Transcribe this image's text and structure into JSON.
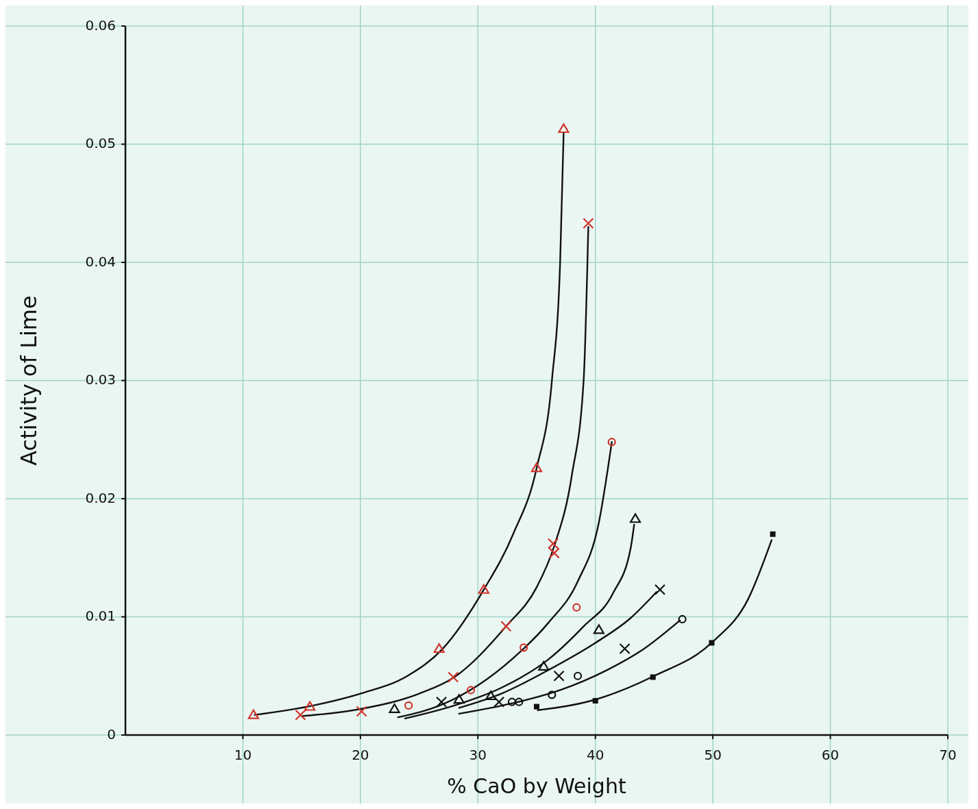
{
  "chart_data": {
    "type": "scatter",
    "xlabel": "% CaO by Weight",
    "ylabel": "Activity of Lime",
    "xlim": [
      0,
      70
    ],
    "ylim": [
      0,
      0.06
    ],
    "xticks": [
      10,
      20,
      30,
      40,
      50,
      60,
      70
    ],
    "yticks": [
      0,
      0.01,
      0.02,
      0.03,
      0.04,
      0.05,
      0.06
    ],
    "grid": true,
    "series": [
      {
        "type": "line",
        "color": "#111111",
        "marker": "none",
        "line_style": "solid",
        "x": [
          11,
          16,
          20,
          24,
          27,
          30.5,
          33,
          35,
          36.3,
          37,
          37.3
        ],
        "values": [
          0.0017,
          0.0025,
          0.0035,
          0.005,
          0.0073,
          0.0123,
          0.017,
          0.0226,
          0.03,
          0.04,
          0.051
        ]
      },
      {
        "type": "line",
        "color": "#111111",
        "marker": "none",
        "line_style": "solid",
        "x": [
          15,
          20,
          25,
          28,
          32.4,
          35,
          36.5,
          38,
          39,
          39.4
        ],
        "values": [
          0.0016,
          0.0022,
          0.0035,
          0.0049,
          0.0092,
          0.0125,
          0.016,
          0.022,
          0.03,
          0.043
        ]
      },
      {
        "type": "line",
        "color": "#111111",
        "marker": "none",
        "line_style": "solid",
        "x": [
          23.2,
          27,
          30,
          33,
          36,
          38.5,
          40.3,
          41.4
        ],
        "values": [
          0.0015,
          0.0026,
          0.0042,
          0.0065,
          0.0095,
          0.013,
          0.018,
          0.0248
        ]
      },
      {
        "type": "line",
        "color": "#111111",
        "marker": "none",
        "line_style": "solid",
        "x": [
          23.8,
          28,
          32,
          36,
          39,
          41.5,
          43,
          43.3
        ],
        "values": [
          0.0014,
          0.0025,
          0.004,
          0.0064,
          0.0092,
          0.012,
          0.0158,
          0.0178
        ]
      },
      {
        "type": "line",
        "color": "#111111",
        "marker": "none",
        "line_style": "solid",
        "x": [
          28.4,
          32,
          36,
          40,
          43,
          45.2
        ],
        "values": [
          0.0023,
          0.0035,
          0.0055,
          0.0078,
          0.0099,
          0.0121
        ]
      },
      {
        "type": "line",
        "color": "#111111",
        "marker": "none",
        "line_style": "solid",
        "x": [
          28.4,
          33,
          37,
          41,
          44,
          47.2
        ],
        "values": [
          0.0018,
          0.0027,
          0.0038,
          0.0055,
          0.0072,
          0.0097
        ]
      },
      {
        "type": "line",
        "color": "#111111",
        "marker": "none",
        "line_style": "solid",
        "x": [
          35.1,
          40,
          45,
          50,
          53,
          55
        ],
        "values": [
          0.0021,
          0.003,
          0.005,
          0.0079,
          0.0115,
          0.0165
        ]
      },
      {
        "type": "scatter",
        "color": "#d0342c",
        "marker": "triangle",
        "x": [
          10.9,
          15.7,
          26.7,
          30.5,
          35.0,
          37.3
        ],
        "values": [
          0.0017,
          0.0024,
          0.0073,
          0.0123,
          0.0226,
          0.0513
        ]
      },
      {
        "type": "scatter",
        "color": "#d0342c",
        "marker": "cross",
        "x": [
          14.9,
          20.1,
          27.9,
          32.4,
          36.4,
          36.5,
          39.4
        ],
        "values": [
          0.0017,
          0.002,
          0.0049,
          0.0092,
          0.0162,
          0.0154,
          0.0433
        ]
      },
      {
        "type": "scatter",
        "color": "#d0342c",
        "marker": "circle",
        "x": [
          24.1,
          29.4,
          33.9,
          38.4,
          41.4
        ],
        "values": [
          0.0025,
          0.0038,
          0.0074,
          0.0108,
          0.0248
        ]
      },
      {
        "type": "scatter",
        "color": "#111111",
        "marker": "triangle",
        "x": [
          22.9,
          28.4,
          31.1,
          35.6,
          40.3,
          43.4
        ],
        "values": [
          0.0022,
          0.003,
          0.0033,
          0.0058,
          0.0089,
          0.0183
        ]
      },
      {
        "type": "scatter",
        "color": "#111111",
        "marker": "cross",
        "x": [
          26.9,
          31.8,
          36.9,
          42.5,
          45.5
        ],
        "values": [
          0.0028,
          0.0028,
          0.005,
          0.0073,
          0.0123
        ]
      },
      {
        "type": "scatter",
        "color": "#111111",
        "marker": "circle",
        "x": [
          32.9,
          33.5,
          36.3,
          38.5,
          47.4
        ],
        "values": [
          0.0028,
          0.0028,
          0.0034,
          0.005,
          0.0098
        ]
      },
      {
        "type": "scatter",
        "color": "#111111",
        "marker": "square",
        "x": [
          35.0,
          40.0,
          44.9,
          49.9,
          55.1
        ],
        "values": [
          0.0024,
          0.0029,
          0.0049,
          0.0078,
          0.017
        ]
      }
    ]
  }
}
